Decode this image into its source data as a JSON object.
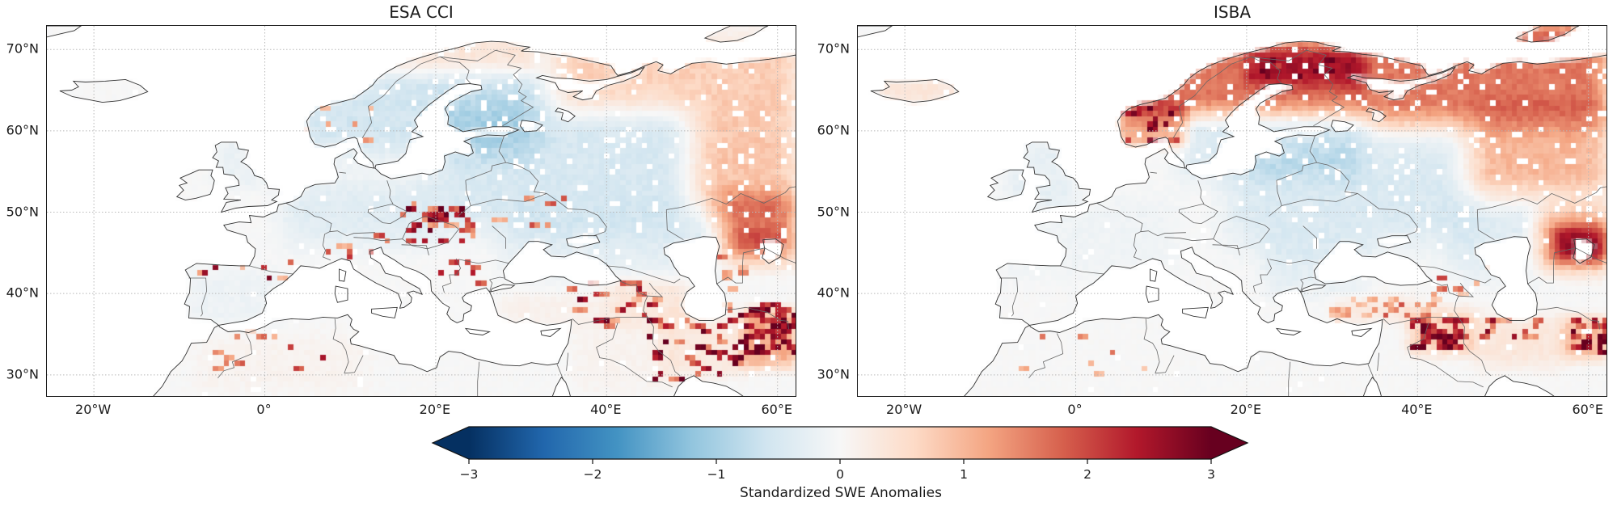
{
  "figure": {
    "panels": [
      {
        "id": "esa_cci",
        "title": "ESA CCI"
      },
      {
        "id": "isba",
        "title": "ISBA"
      }
    ],
    "axes": {
      "lon_range": [
        -25.5,
        62.3
      ],
      "lat_range": [
        27.2,
        72.9
      ],
      "lat_ticks": [
        {
          "label": "70°N",
          "value": 70
        },
        {
          "label": "60°N",
          "value": 60
        },
        {
          "label": "50°N",
          "value": 50
        },
        {
          "label": "40°N",
          "value": 40
        },
        {
          "label": "30°N",
          "value": 30
        }
      ],
      "lon_ticks": [
        {
          "label": "20°W",
          "value": -20
        },
        {
          "label": "0°",
          "value": 0
        },
        {
          "label": "20°E",
          "value": 20
        },
        {
          "label": "40°E",
          "value": 40
        },
        {
          "label": "60°E",
          "value": 60
        }
      ]
    },
    "style": {
      "background": "#ffffff",
      "sea_color": "#ffffff",
      "land_color": "#f4f4f4",
      "panel_border_color": "#1b1b1b",
      "coast_color": "#333333",
      "country_border_color": "#666666",
      "gridline_color": "#b8b8b8",
      "text_color": "#1a1a1a"
    },
    "colorbar": {
      "label": "Standardized SWE Anomalies",
      "ticks": [
        "−3",
        "−2",
        "−1",
        "0",
        "1",
        "2",
        "3"
      ],
      "tick_values": [
        -3,
        -2,
        -1,
        0,
        1,
        2,
        3
      ],
      "range": [
        -3,
        3
      ],
      "extend": "both",
      "cmap_name": "RdBu_r",
      "cmap_stops": [
        "#053061",
        "#2166ac",
        "#4393c3",
        "#92c5de",
        "#d1e5f0",
        "#f7f7f7",
        "#fddbc7",
        "#f4a582",
        "#d6604d",
        "#b2182b",
        "#67001f"
      ]
    }
  },
  "chart_data": [
    {
      "type": "heatmap",
      "panel": "ESA CCI",
      "variable": "Standardized SWE Anomalies",
      "extent": {
        "lon_min": -25.5,
        "lon_max": 62.3,
        "lat_min": 27.2,
        "lat_max": 72.9
      },
      "value_range": [
        -3,
        3
      ],
      "cmap": "RdBu_r",
      "features": [
        {
          "region": "Scandinavia and Finland",
          "lon": [
            4,
            32
          ],
          "lat": [
            57,
            71
          ],
          "value": -0.55,
          "feather": 3
        },
        {
          "region": "Baltics and western Russia",
          "lon": [
            20,
            50
          ],
          "lat": [
            48,
            64
          ],
          "value": -0.5,
          "feather": 4
        },
        {
          "region": "Central Europe",
          "lon": [
            2,
            20
          ],
          "lat": [
            46,
            54
          ],
          "value": -0.35,
          "feather": 3
        },
        {
          "region": "British Isles",
          "lon": [
            -6,
            0
          ],
          "lat": [
            53,
            59
          ],
          "value": -0.2,
          "feather": 1.5
        },
        {
          "region": "Iberia",
          "lon": [
            -9,
            2
          ],
          "lat": [
            36,
            43
          ],
          "value": -0.15,
          "feather": 2
        },
        {
          "region": "Northern Scandinavia coast",
          "lon": [
            12,
            32
          ],
          "lat": [
            67,
            71.5
          ],
          "value": 0.85,
          "feather": 2
        },
        {
          "region": "Arctic Russia",
          "lon": [
            34,
            62.3
          ],
          "lat": [
            62,
            72.9
          ],
          "value": 0.75,
          "feather": 3
        },
        {
          "region": "Urals and eastern steppe",
          "lon": [
            50,
            62.3
          ],
          "lat": [
            50,
            62
          ],
          "value": 0.85,
          "feather": 3.5
        },
        {
          "region": "Northern Kazakhstan",
          "lon": [
            53,
            62.3
          ],
          "lat": [
            44,
            52
          ],
          "value": 1.3,
          "feather": 2.5
        },
        {
          "region": "Kazakh dark spot",
          "lon": [
            55,
            61
          ],
          "lat": [
            45,
            48
          ],
          "value": 0.7,
          "feather": 1.5
        },
        {
          "region": "Pontic steppe",
          "lon": [
            28,
            44
          ],
          "lat": [
            42,
            50
          ],
          "value": -0.3,
          "feather": 3
        },
        {
          "region": "Caspian lowland",
          "lon": [
            44,
            54
          ],
          "lat": [
            42,
            50
          ],
          "value": -0.3,
          "feather": 3
        },
        {
          "region": "Anatolia",
          "lon": [
            28,
            40
          ],
          "lat": [
            36,
            40
          ],
          "value": 0.15,
          "feather": 2
        },
        {
          "region": "Caucasus and eastern Turkey",
          "lon": [
            40,
            50
          ],
          "lat": [
            36,
            42
          ],
          "value": 0.35,
          "feather": 2
        },
        {
          "region": "Iranian plateau",
          "lon": [
            46,
            57
          ],
          "lat": [
            30,
            37
          ],
          "value": 0.3,
          "feather": 2
        },
        {
          "region": "Eastern Iran and Afghanistan",
          "lon": [
            56,
            62.3
          ],
          "lat": [
            31,
            38
          ],
          "value": 1.1,
          "feather": 1.5
        },
        {
          "region": "Middle East lowlands",
          "lon": [
            36,
            48
          ],
          "lat": [
            28,
            36
          ],
          "value": 0.1,
          "feather": 2
        },
        {
          "region": "Maghreb",
          "lon": [
            -8,
            12
          ],
          "lat": [
            28,
            35
          ],
          "value": 0.1,
          "feather": 2
        },
        {
          "region": "Novaya Zemlya",
          "lon": [
            52,
            59
          ],
          "lat": [
            70.5,
            72.9
          ],
          "value": -0.4,
          "feather": 1
        }
      ],
      "speckle_clusters": [
        {
          "region": "Carpathians and Tatra",
          "lon": [
            16,
            25
          ],
          "lat": [
            46,
            51
          ],
          "count": 26,
          "vmin": 1.0,
          "vmax": 3.2
        },
        {
          "region": "Tatra core",
          "lon": [
            19,
            23
          ],
          "lat": [
            48.5,
            50.5
          ],
          "count": 10,
          "vmin": 2.6,
          "vmax": 3.4
        },
        {
          "region": "Alps scattered",
          "lon": [
            6,
            15
          ],
          "lat": [
            44,
            47.5
          ],
          "count": 8,
          "vmin": 0.8,
          "vmax": 2.2
        },
        {
          "region": "Balkans scattered",
          "lon": [
            20,
            27
          ],
          "lat": [
            41,
            45
          ],
          "count": 8,
          "vmin": 0.8,
          "vmax": 2.4
        },
        {
          "region": "Northern Spain Pyrenees",
          "lon": [
            -8,
            3.5
          ],
          "lat": [
            41.5,
            44
          ],
          "count": 9,
          "vmin": 1.0,
          "vmax": 3.2
        },
        {
          "region": "Atlas mountains",
          "lon": [
            -7,
            10
          ],
          "lat": [
            30,
            35.5
          ],
          "count": 12,
          "vmin": 1.0,
          "vmax": 3.2
        },
        {
          "region": "East Turkey Caucasus",
          "lon": [
            36,
            46
          ],
          "lat": [
            36,
            41.5
          ],
          "count": 26,
          "vmin": 1.0,
          "vmax": 3.2
        },
        {
          "region": "Zagros Iran scattered",
          "lon": [
            44,
            56
          ],
          "lat": [
            29,
            37
          ],
          "count": 40,
          "vmin": 1.2,
          "vmax": 3.3
        },
        {
          "region": "Eastern Iran dense",
          "lon": [
            56,
            62.3
          ],
          "lat": [
            32.5,
            38.5
          ],
          "count": 55,
          "vmin": 2.2,
          "vmax": 3.4
        },
        {
          "region": "Caspian east coast",
          "lon": [
            50,
            56
          ],
          "lat": [
            37,
            45
          ],
          "count": 14,
          "vmin": 1.0,
          "vmax": 3.0
        },
        {
          "region": "Scandinavia few",
          "lon": [
            5,
            14
          ],
          "lat": [
            58,
            64
          ],
          "count": 6,
          "vmin": 0.6,
          "vmax": 1.6
        },
        {
          "region": "Ukraine few",
          "lon": [
            26,
            36
          ],
          "lat": [
            47,
            52
          ],
          "count": 8,
          "vmin": 0.7,
          "vmax": 2.0
        }
      ]
    },
    {
      "type": "heatmap",
      "panel": "ISBA",
      "variable": "Standardized SWE Anomalies",
      "extent": {
        "lon_min": -25.5,
        "lon_max": 62.3,
        "lat_min": 27.2,
        "lat_max": 72.9
      },
      "value_range": [
        -3,
        3
      ],
      "cmap": "RdBu_r",
      "features": [
        {
          "region": "Northern Scandinavia",
          "lon": [
            6,
            34
          ],
          "lat": [
            62,
            71.5
          ],
          "value": 1.6,
          "feather": 2.5
        },
        {
          "region": "Lapland core",
          "lon": [
            20,
            34
          ],
          "lat": [
            65.5,
            70
          ],
          "value": 0.9,
          "feather": 2
        },
        {
          "region": "Arctic Russia band",
          "lon": [
            34,
            62.3
          ],
          "lat": [
            61,
            72.9
          ],
          "value": 1.6,
          "feather": 3
        },
        {
          "region": "Northeast Russia and Urals",
          "lon": [
            46,
            62.3
          ],
          "lat": [
            52,
            62
          ],
          "value": 1.0,
          "feather": 3.5
        },
        {
          "region": "Kazakh steppe dark",
          "lon": [
            54,
            62.3
          ],
          "lat": [
            43,
            50
          ],
          "value": 1.5,
          "feather": 2.5
        },
        {
          "region": "Kazakh core",
          "lon": [
            56,
            62.3
          ],
          "lat": [
            44,
            48
          ],
          "value": 1.2,
          "feather": 1.5
        },
        {
          "region": "Southern Norway mountains",
          "lon": [
            5,
            13
          ],
          "lat": [
            58,
            63.5
          ],
          "value": 1.1,
          "feather": 1.2
        },
        {
          "region": "Southern Scandinavia Baltic",
          "lon": [
            12,
            34
          ],
          "lat": [
            54,
            62
          ],
          "value": -0.4,
          "feather": 2.5
        },
        {
          "region": "Eastern Europe",
          "lon": [
            18,
            46
          ],
          "lat": [
            46,
            59
          ],
          "value": -0.45,
          "feather": 4
        },
        {
          "region": "Western Kazakhstan",
          "lon": [
            44,
            56
          ],
          "lat": [
            42,
            52
          ],
          "value": -0.35,
          "feather": 3
        },
        {
          "region": "Western Europe",
          "lon": [
            -10,
            12
          ],
          "lat": [
            42,
            52
          ],
          "value": -0.12,
          "feather": 3
        },
        {
          "region": "British Isles",
          "lon": [
            -8,
            0
          ],
          "lat": [
            51,
            59
          ],
          "value": -0.25,
          "feather": 2
        },
        {
          "region": "Balkans",
          "lon": [
            22,
            34
          ],
          "lat": [
            40,
            47
          ],
          "value": -0.3,
          "feather": 2.5
        },
        {
          "region": "Iceland",
          "lon": [
            -23,
            -13.5
          ],
          "lat": [
            63,
            66.6
          ],
          "value": 0.35,
          "feather": 1
        },
        {
          "region": "Central Anatolia",
          "lon": [
            30,
            40
          ],
          "lat": [
            36.5,
            39.5
          ],
          "value": 0.3,
          "feather": 1.5
        },
        {
          "region": "Zagros",
          "lon": [
            39,
            47
          ],
          "lat": [
            32.5,
            38
          ],
          "value": 0.7,
          "feather": 1.5
        },
        {
          "region": "Iranian plateau",
          "lon": [
            47,
            57
          ],
          "lat": [
            31,
            37
          ],
          "value": 0.35,
          "feather": 2
        },
        {
          "region": "Eastern Iran",
          "lon": [
            57,
            62.3
          ],
          "lat": [
            32,
            37
          ],
          "value": 1.0,
          "feather": 1.5
        },
        {
          "region": "Novaya Zemlya",
          "lon": [
            52,
            59
          ],
          "lat": [
            70.5,
            72.9
          ],
          "value": 0.5,
          "feather": 1
        }
      ],
      "speckle_clusters": [
        {
          "region": "South Norway dark pixels",
          "lon": [
            6,
            12.5
          ],
          "lat": [
            58.5,
            63.5
          ],
          "count": 22,
          "vmin": 1.8,
          "vmax": 3.4
        },
        {
          "region": "Lapland dark pixels",
          "lon": [
            20,
            32
          ],
          "lat": [
            66.5,
            69.5
          ],
          "count": 10,
          "vmin": 2.4,
          "vmax": 3.4
        },
        {
          "region": "Zagros dense dark",
          "lon": [
            39.5,
            45.5
          ],
          "lat": [
            33,
            37
          ],
          "count": 42,
          "vmin": 2.2,
          "vmax": 3.4
        },
        {
          "region": "East Turkey scattered",
          "lon": [
            36,
            42
          ],
          "lat": [
            36.5,
            39.5
          ],
          "count": 14,
          "vmin": 0.8,
          "vmax": 2.0
        },
        {
          "region": "Alborz line",
          "lon": [
            47,
            55
          ],
          "lat": [
            34.5,
            37
          ],
          "count": 18,
          "vmin": 1.0,
          "vmax": 2.8
        },
        {
          "region": "Eastern Iran dark",
          "lon": [
            58,
            62.3
          ],
          "lat": [
            32.5,
            37
          ],
          "count": 28,
          "vmin": 1.8,
          "vmax": 3.4
        },
        {
          "region": "Central Turkey pale",
          "lon": [
            30,
            38
          ],
          "lat": [
            36.5,
            39.5
          ],
          "count": 16,
          "vmin": 0.6,
          "vmax": 1.5
        },
        {
          "region": "Atlas few",
          "lon": [
            -7,
            9
          ],
          "lat": [
            30,
            35
          ],
          "count": 7,
          "vmin": 0.6,
          "vmax": 1.8
        },
        {
          "region": "Caucasus few",
          "lon": [
            41,
            48
          ],
          "lat": [
            39,
            43.5
          ],
          "count": 8,
          "vmin": 0.8,
          "vmax": 2.2
        }
      ]
    }
  ]
}
